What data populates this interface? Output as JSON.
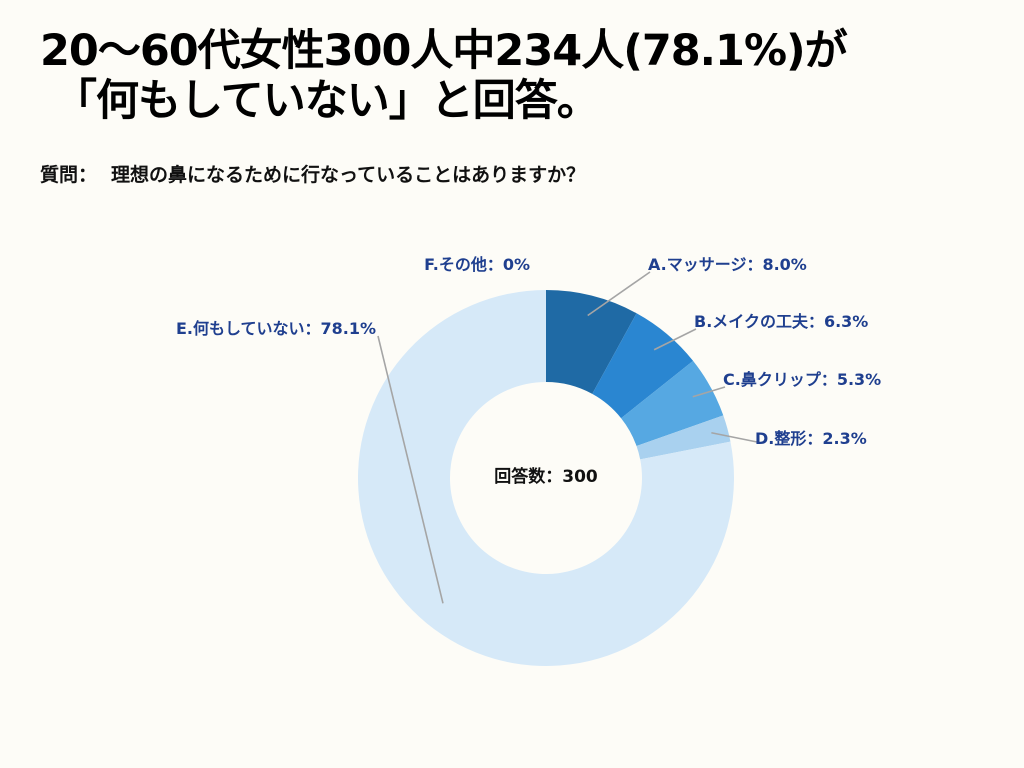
{
  "title": {
    "line1": "20〜60代女性300人中234人(78.1%)が",
    "line2": "「何もしていない」と回答。"
  },
  "question": {
    "prefix": "質問：",
    "text": "理想の鼻になるために行なっていることはありますか？"
  },
  "chart_data": {
    "type": "donut",
    "center_label": "回答数：300",
    "total": 300,
    "label_color": "#1f3f8f",
    "leader_color": "#a5a5a5",
    "slices": [
      {
        "label": "A.マッサージ：8.0%",
        "name": "A.マッサージ",
        "value": 8.0,
        "color": "#1f6aa5"
      },
      {
        "label": "B.メイクの工夫：6.3%",
        "name": "B.メイクの工夫",
        "value": 6.3,
        "color": "#2a86d1"
      },
      {
        "label": "C.鼻クリップ：5.3%",
        "name": "C.鼻クリップ",
        "value": 5.3,
        "color": "#56a8e2"
      },
      {
        "label": "D.整形：2.3%",
        "name": "D.整形",
        "value": 2.3,
        "color": "#a9d1ef"
      },
      {
        "label": "E.何もしていない：78.1%",
        "name": "E.何もしていない",
        "value": 78.1,
        "color": "#d6e9f8"
      },
      {
        "label": "F.その他：0%",
        "name": "F.その他",
        "value": 0.0,
        "color": "#eaf3fb"
      }
    ]
  }
}
